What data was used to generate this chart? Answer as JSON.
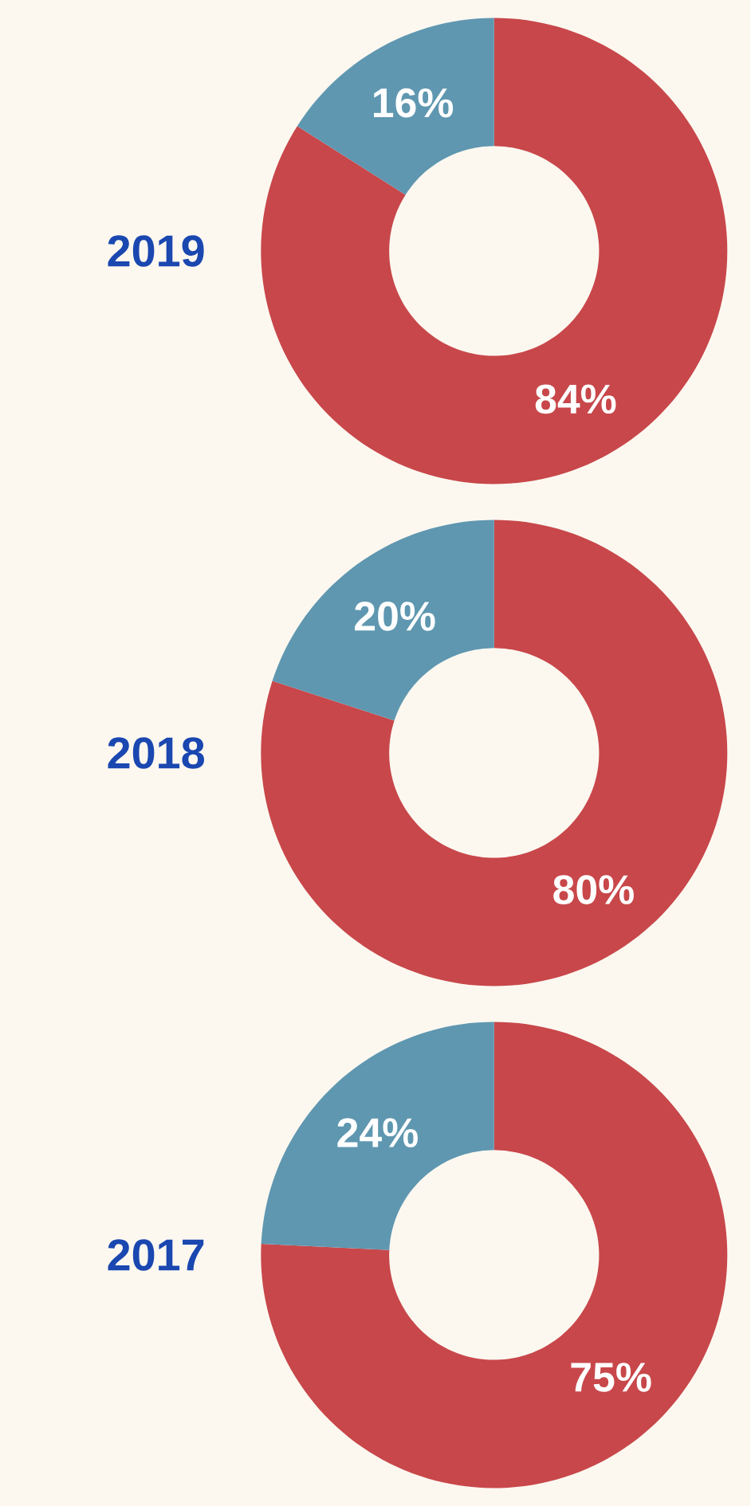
{
  "chart_data": [
    {
      "type": "donut",
      "title": "2019",
      "categories": [
        null,
        null
      ],
      "values": [
        84,
        16
      ],
      "colors": [
        "#c8474a",
        "#5f97b0"
      ],
      "value_labels": [
        "84%",
        "16%"
      ]
    },
    {
      "type": "donut",
      "title": "2018",
      "categories": [
        null,
        null
      ],
      "values": [
        80,
        20
      ],
      "colors": [
        "#c8474a",
        "#5f97b0"
      ],
      "value_labels": [
        "80%",
        "20%"
      ]
    },
    {
      "type": "donut",
      "title": "2017",
      "categories": [
        null,
        null
      ],
      "values": [
        75,
        24
      ],
      "colors": [
        "#c8474a",
        "#5f97b0"
      ],
      "value_labels": [
        "75%",
        "24%"
      ]
    }
  ]
}
